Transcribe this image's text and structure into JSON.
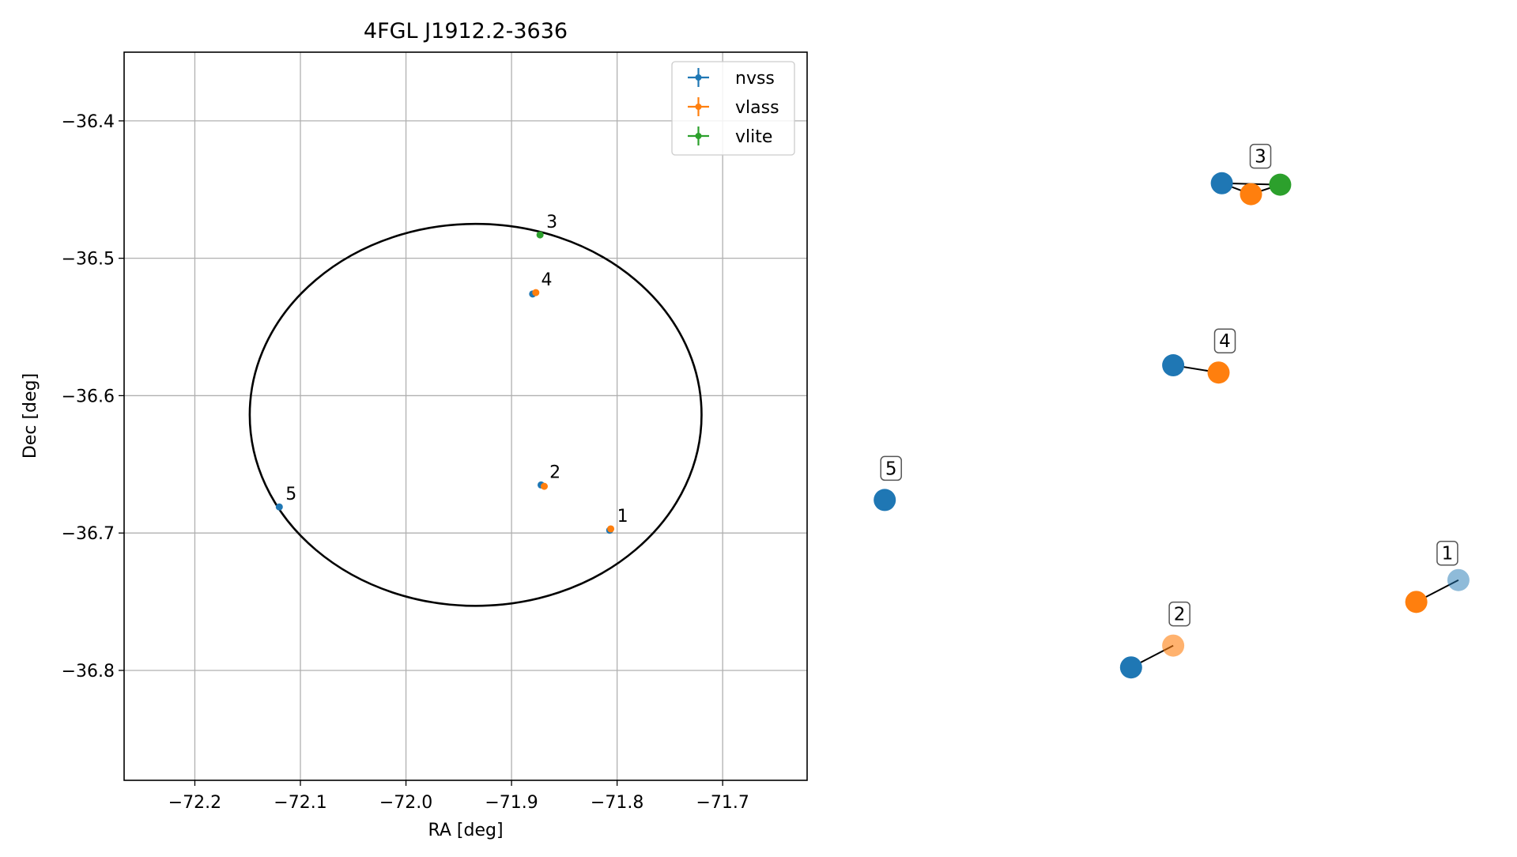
{
  "chart_data": [
    {
      "type": "scatter",
      "title": "4FGL J1912.2-3636",
      "xlabel": "RA [deg]",
      "ylabel": "Dec [deg]",
      "xlim": [
        -72.267,
        -71.62
      ],
      "ylim": [
        -36.88,
        -36.35
      ],
      "xticks": [
        -72.2,
        -72.1,
        -72.0,
        -71.9,
        -71.8,
        -71.7
      ],
      "yticks": [
        -36.4,
        -36.5,
        -36.6,
        -36.7,
        -36.8
      ],
      "xtick_labels": [
        "−72.2",
        "−72.1",
        "−72.0",
        "−71.9",
        "−71.8",
        "−71.7"
      ],
      "ytick_labels": [
        "−36.4",
        "−36.5",
        "−36.6",
        "−36.7",
        "−36.8"
      ],
      "grid": true,
      "legend": "top-right",
      "ellipse": {
        "center": [
          -71.934,
          -36.614
        ],
        "semi_axis_ra": 0.214,
        "semi_axis_dec": 0.139,
        "color": "#000000"
      },
      "series": [
        {
          "name": "nvss",
          "color": "#1f77b4",
          "points": [
            {
              "x": -71.807,
              "y": -36.698
            },
            {
              "x": -71.872,
              "y": -36.665
            },
            {
              "x": -71.88,
              "y": -36.526
            },
            {
              "x": -72.12,
              "y": -36.681
            }
          ]
        },
        {
          "name": "vlass",
          "color": "#ff7f0e",
          "points": [
            {
              "x": -71.806,
              "y": -36.697
            },
            {
              "x": -71.869,
              "y": -36.666
            },
            {
              "x": -71.877,
              "y": -36.525
            }
          ]
        },
        {
          "name": "vlite",
          "color": "#2ca02c",
          "points": [
            {
              "x": -71.873,
              "y": -36.483
            }
          ]
        }
      ],
      "point_labels": [
        {
          "label": "1",
          "x": -71.806,
          "y": -36.697
        },
        {
          "label": "2",
          "x": -71.87,
          "y": -36.665
        },
        {
          "label": "3",
          "x": -71.873,
          "y": -36.483
        },
        {
          "label": "4",
          "x": -71.878,
          "y": -36.525
        },
        {
          "label": "5",
          "x": -72.12,
          "y": -36.681
        }
      ]
    },
    {
      "type": "scatter",
      "title": "",
      "axes": false,
      "colors": {
        "nvss": "#1f77b4",
        "vlass": "#ff7f0e",
        "vlite": "#2ca02c"
      },
      "groups": [
        {
          "label": "1",
          "points": [
            {
              "survey": "vlass",
              "x": 0.88,
              "y": 0.245
            },
            {
              "survey": "nvss",
              "x": 0.945,
              "y": 0.275,
              "alpha": 0.5
            }
          ]
        },
        {
          "label": "2",
          "points": [
            {
              "survey": "nvss",
              "x": 0.44,
              "y": 0.155
            },
            {
              "survey": "vlass",
              "x": 0.505,
              "y": 0.185,
              "alpha": 0.6
            }
          ]
        },
        {
          "label": "3",
          "points": [
            {
              "survey": "nvss",
              "x": 0.58,
              "y": 0.82
            },
            {
              "survey": "vlass",
              "x": 0.625,
              "y": 0.805
            },
            {
              "survey": "vlite",
              "x": 0.67,
              "y": 0.818
            }
          ]
        },
        {
          "label": "4",
          "points": [
            {
              "survey": "nvss",
              "x": 0.505,
              "y": 0.57
            },
            {
              "survey": "vlass",
              "x": 0.575,
              "y": 0.56
            }
          ]
        },
        {
          "label": "5",
          "points": [
            {
              "survey": "nvss",
              "x": 0.06,
              "y": 0.385
            }
          ]
        }
      ]
    }
  ]
}
